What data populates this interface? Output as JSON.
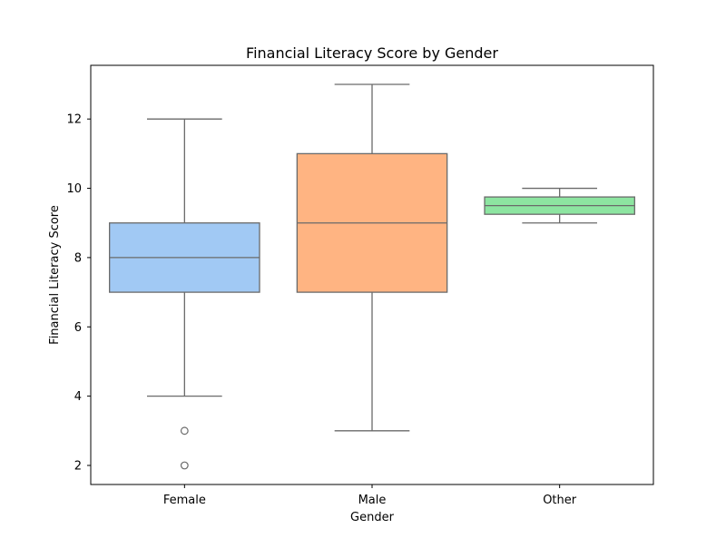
{
  "chart_data": {
    "type": "box",
    "title": "Financial Literacy Score by Gender",
    "xlabel": "Gender",
    "ylabel": "Financial Literacy Score",
    "ylim": [
      1.45,
      13.55
    ],
    "yticks": [
      2,
      4,
      6,
      8,
      10,
      12
    ],
    "grid": false,
    "categories": [
      "Female",
      "Male",
      "Other"
    ],
    "boxes": [
      {
        "category": "Female",
        "whisker_low": 4,
        "q1": 7,
        "median": 8,
        "q3": 9,
        "whisker_high": 12,
        "outliers": [
          3,
          2
        ],
        "color": "#a1c9f4"
      },
      {
        "category": "Male",
        "whisker_low": 3,
        "q1": 7,
        "median": 9,
        "q3": 11,
        "whisker_high": 13,
        "outliers": [],
        "color": "#ffb482"
      },
      {
        "category": "Other",
        "whisker_low": 9,
        "q1": 9.25,
        "median": 9.5,
        "q3": 9.75,
        "whisker_high": 10,
        "outliers": [],
        "color": "#8de5a1"
      }
    ]
  }
}
